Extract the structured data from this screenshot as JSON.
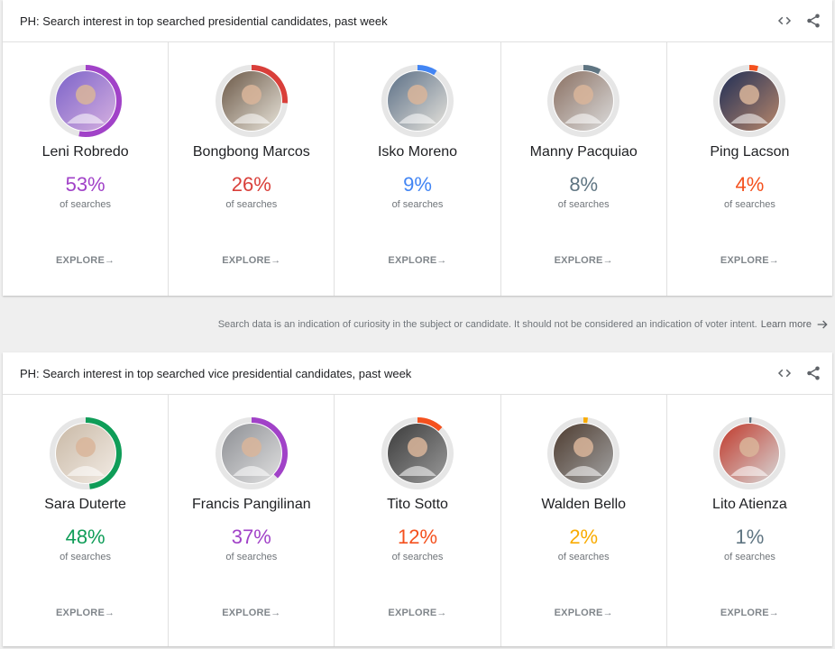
{
  "presidential": {
    "title": "PH: Search interest in top searched presidential candidates, past week",
    "candidates": [
      {
        "name": "Leni Robredo",
        "percent": "53%",
        "value": 53,
        "color": "#a142c8",
        "bg1": "#7c63c9",
        "bg2": "#d6b0e0"
      },
      {
        "name": "Bongbong Marcos",
        "percent": "26%",
        "value": 26,
        "color": "#d93f3a",
        "bg1": "#6b5847",
        "bg2": "#e8e4da"
      },
      {
        "name": "Isko Moreno",
        "percent": "9%",
        "value": 9,
        "color": "#4285f4",
        "bg1": "#5b6f86",
        "bg2": "#e6e3dc"
      },
      {
        "name": "Manny Pacquiao",
        "percent": "8%",
        "value": 8,
        "color": "#5f7582",
        "bg1": "#8a7062",
        "bg2": "#dcdcdc"
      },
      {
        "name": "Ping Lacson",
        "percent": "4%",
        "value": 4,
        "color": "#f4511e",
        "bg1": "#1f2e56",
        "bg2": "#b8876b"
      }
    ]
  },
  "vice_presidential": {
    "title": "PH: Search interest in top searched vice presidential candidates, past week",
    "candidates": [
      {
        "name": "Sara Duterte",
        "percent": "48%",
        "value": 48,
        "color": "#0f9d58",
        "bg1": "#c9b9a6",
        "bg2": "#f2ebe4"
      },
      {
        "name": "Francis Pangilinan",
        "percent": "37%",
        "value": 37,
        "color": "#a142c8",
        "bg1": "#8d8f94",
        "bg2": "#e0e0e0"
      },
      {
        "name": "Tito Sotto",
        "percent": "12%",
        "value": 12,
        "color": "#f4511e",
        "bg1": "#3b3b3b",
        "bg2": "#9a9a9a"
      },
      {
        "name": "Walden Bello",
        "percent": "2%",
        "value": 2,
        "color": "#f9ab00",
        "bg1": "#4d3b2f",
        "bg2": "#a3a3a3"
      },
      {
        "name": "Lito Atienza",
        "percent": "1%",
        "value": 1,
        "color": "#5f7582",
        "bg1": "#c0392b",
        "bg2": "#d7d7d7"
      }
    ]
  },
  "common": {
    "of_searches": "of searches",
    "explore_label": "EXPLORE",
    "explore_arrow": "→"
  },
  "disclaimer": {
    "text": "Search data is an indication of curiosity in the subject or candidate. It should not be considered an indication of voter intent.",
    "learn_more": "Learn more"
  },
  "icons": {
    "embed": "code-icon",
    "share": "share-icon",
    "arrow": "arrow-right-icon"
  }
}
